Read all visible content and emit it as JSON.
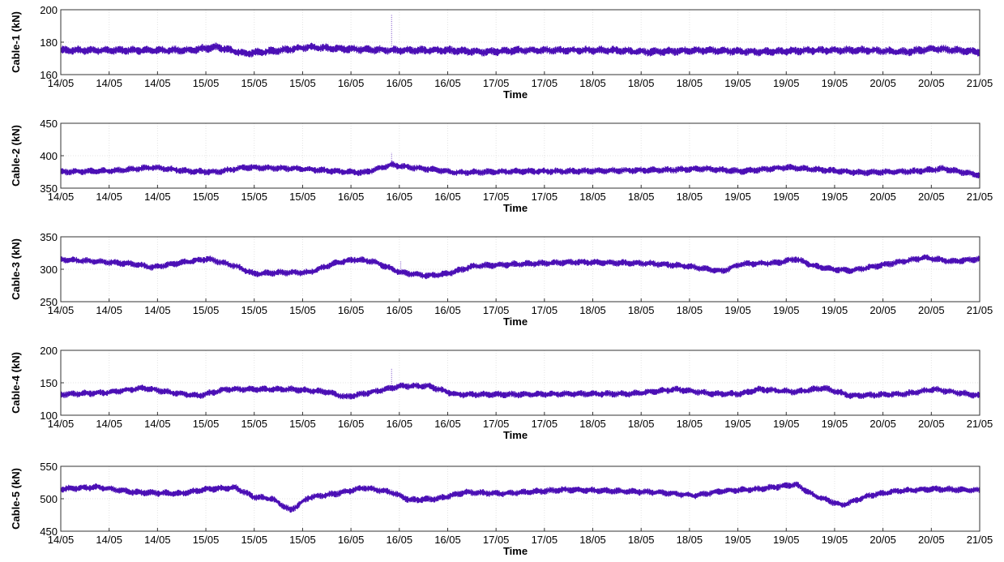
{
  "chart_data": [
    {
      "type": "line",
      "ylabel": "Cable-1 (kN)",
      "xlabel": "Time",
      "ylim": [
        160,
        200
      ],
      "yticks": [
        160,
        180,
        200
      ],
      "xtick_labels": [
        "14/05",
        "14/05",
        "14/05",
        "15/05",
        "15/05",
        "15/05",
        "16/05",
        "16/05",
        "16/05",
        "17/05",
        "17/05",
        "18/05",
        "18/05",
        "18/05",
        "19/05",
        "19/05",
        "19/05",
        "20/05",
        "20/05",
        "21/05"
      ],
      "grid": true,
      "color": "#4b0fb5",
      "baseline": [
        [
          0,
          175
        ],
        [
          0.05,
          175
        ],
        [
          0.1,
          175
        ],
        [
          0.14,
          175
        ],
        [
          0.17,
          177
        ],
        [
          0.2,
          173
        ],
        [
          0.24,
          175
        ],
        [
          0.27,
          177
        ],
        [
          0.3,
          176
        ],
        [
          0.36,
          175
        ],
        [
          0.42,
          175
        ],
        [
          0.46,
          174
        ],
        [
          0.5,
          175
        ],
        [
          0.56,
          175
        ],
        [
          0.6,
          175
        ],
        [
          0.64,
          174
        ],
        [
          0.7,
          175
        ],
        [
          0.76,
          174
        ],
        [
          0.82,
          175
        ],
        [
          0.88,
          175
        ],
        [
          0.92,
          174
        ],
        [
          0.95,
          176
        ],
        [
          1,
          174
        ]
      ],
      "spikes": [
        {
          "t": 0.36,
          "value": 197
        }
      ],
      "band": 2.2
    },
    {
      "type": "line",
      "ylabel": "Cable-2 (kN)",
      "xlabel": "Time",
      "ylim": [
        350,
        450
      ],
      "yticks": [
        350,
        400,
        450
      ],
      "xtick_labels": [
        "14/05",
        "14/05",
        "14/05",
        "15/05",
        "15/05",
        "15/05",
        "16/05",
        "16/05",
        "16/05",
        "17/05",
        "17/05",
        "18/05",
        "18/05",
        "18/05",
        "19/05",
        "19/05",
        "19/05",
        "20/05",
        "20/05",
        "21/05"
      ],
      "grid": true,
      "color": "#4b0fb5",
      "baseline": [
        [
          0,
          375
        ],
        [
          0.06,
          377
        ],
        [
          0.1,
          382
        ],
        [
          0.14,
          376
        ],
        [
          0.17,
          375
        ],
        [
          0.2,
          382
        ],
        [
          0.26,
          380
        ],
        [
          0.3,
          376
        ],
        [
          0.33,
          374
        ],
        [
          0.36,
          386
        ],
        [
          0.38,
          382
        ],
        [
          0.41,
          378
        ],
        [
          0.43,
          374
        ],
        [
          0.5,
          376
        ],
        [
          0.55,
          376
        ],
        [
          0.6,
          377
        ],
        [
          0.66,
          378
        ],
        [
          0.7,
          380
        ],
        [
          0.74,
          376
        ],
        [
          0.79,
          382
        ],
        [
          0.83,
          378
        ],
        [
          0.87,
          374
        ],
        [
          0.93,
          376
        ],
        [
          0.96,
          380
        ],
        [
          1,
          370
        ]
      ],
      "spikes": [
        {
          "t": 0.36,
          "value": 405
        }
      ],
      "band": 4.5
    },
    {
      "type": "line",
      "ylabel": "Cable-3 (kN)",
      "xlabel": "Time",
      "ylim": [
        250,
        350
      ],
      "yticks": [
        250,
        300,
        350
      ],
      "xtick_labels": [
        "14/05",
        "14/05",
        "14/05",
        "15/05",
        "15/05",
        "15/05",
        "16/05",
        "16/05",
        "16/05",
        "17/05",
        "17/05",
        "18/05",
        "18/05",
        "18/05",
        "19/05",
        "19/05",
        "19/05",
        "20/05",
        "20/05",
        "21/05"
      ],
      "grid": true,
      "color": "#4b0fb5",
      "baseline": [
        [
          0,
          315
        ],
        [
          0.04,
          312
        ],
        [
          0.08,
          308
        ],
        [
          0.1,
          303
        ],
        [
          0.13,
          310
        ],
        [
          0.16,
          316
        ],
        [
          0.19,
          305
        ],
        [
          0.21,
          293
        ],
        [
          0.24,
          295
        ],
        [
          0.27,
          295
        ],
        [
          0.3,
          310
        ],
        [
          0.32,
          315
        ],
        [
          0.34,
          312
        ],
        [
          0.37,
          295
        ],
        [
          0.4,
          290
        ],
        [
          0.42,
          293
        ],
        [
          0.45,
          305
        ],
        [
          0.5,
          308
        ],
        [
          0.56,
          311
        ],
        [
          0.6,
          310
        ],
        [
          0.64,
          309
        ],
        [
          0.68,
          305
        ],
        [
          0.72,
          297
        ],
        [
          0.74,
          308
        ],
        [
          0.78,
          310
        ],
        [
          0.8,
          316
        ],
        [
          0.82,
          305
        ],
        [
          0.84,
          300
        ],
        [
          0.86,
          298
        ],
        [
          0.9,
          308
        ],
        [
          0.92,
          313
        ],
        [
          0.94,
          318
        ],
        [
          0.97,
          312
        ],
        [
          1,
          316
        ]
      ],
      "spikes": [
        {
          "t": 0.37,
          "value": 312
        }
      ],
      "band": 4.5
    },
    {
      "type": "line",
      "ylabel": "Cable-4 (kN)",
      "xlabel": "Time",
      "ylim": [
        100,
        200
      ],
      "yticks": [
        100,
        150,
        200
      ],
      "xtick_labels": [
        "14/05",
        "14/05",
        "14/05",
        "15/05",
        "15/05",
        "15/05",
        "16/05",
        "16/05",
        "16/05",
        "17/05",
        "17/05",
        "18/05",
        "18/05",
        "18/05",
        "19/05",
        "19/05",
        "19/05",
        "20/05",
        "20/05",
        "21/05"
      ],
      "grid": true,
      "color": "#4b0fb5",
      "baseline": [
        [
          0,
          132
        ],
        [
          0.05,
          135
        ],
        [
          0.09,
          142
        ],
        [
          0.12,
          135
        ],
        [
          0.15,
          130
        ],
        [
          0.18,
          140
        ],
        [
          0.25,
          140
        ],
        [
          0.29,
          136
        ],
        [
          0.31,
          128
        ],
        [
          0.34,
          136
        ],
        [
          0.37,
          145
        ],
        [
          0.4,
          145
        ],
        [
          0.43,
          132
        ],
        [
          0.5,
          132
        ],
        [
          0.56,
          133
        ],
        [
          0.62,
          133
        ],
        [
          0.67,
          140
        ],
        [
          0.71,
          133
        ],
        [
          0.74,
          133
        ],
        [
          0.76,
          140
        ],
        [
          0.8,
          136
        ],
        [
          0.83,
          142
        ],
        [
          0.86,
          130
        ],
        [
          0.92,
          133
        ],
        [
          0.95,
          140
        ],
        [
          1,
          130
        ]
      ],
      "spikes": [
        {
          "t": 0.36,
          "value": 172
        }
      ],
      "band": 4.5
    },
    {
      "type": "line",
      "ylabel": "Cable-5 (kN)",
      "xlabel": "Time",
      "ylim": [
        450,
        550
      ],
      "yticks": [
        450,
        500,
        550
      ],
      "xtick_labels": [
        "14/05",
        "14/05",
        "14/05",
        "15/05",
        "15/05",
        "15/05",
        "16/05",
        "16/05",
        "16/05",
        "17/05",
        "17/05",
        "18/05",
        "18/05",
        "18/05",
        "19/05",
        "19/05",
        "19/05",
        "20/05",
        "20/05",
        "21/05"
      ],
      "grid": true,
      "color": "#4b0fb5",
      "baseline": [
        [
          0,
          515
        ],
        [
          0.04,
          518
        ],
        [
          0.08,
          510
        ],
        [
          0.13,
          508
        ],
        [
          0.16,
          515
        ],
        [
          0.19,
          517
        ],
        [
          0.21,
          503
        ],
        [
          0.23,
          500
        ],
        [
          0.25,
          482
        ],
        [
          0.27,
          502
        ],
        [
          0.3,
          508
        ],
        [
          0.33,
          517
        ],
        [
          0.36,
          510
        ],
        [
          0.38,
          498
        ],
        [
          0.41,
          500
        ],
        [
          0.44,
          510
        ],
        [
          0.48,
          508
        ],
        [
          0.55,
          514
        ],
        [
          0.6,
          512
        ],
        [
          0.65,
          510
        ],
        [
          0.69,
          505
        ],
        [
          0.72,
          512
        ],
        [
          0.76,
          515
        ],
        [
          0.8,
          522
        ],
        [
          0.82,
          505
        ],
        [
          0.85,
          490
        ],
        [
          0.88,
          505
        ],
        [
          0.91,
          512
        ],
        [
          0.95,
          515
        ],
        [
          1,
          513
        ]
      ],
      "spikes": [
        {
          "t": 0.36,
          "value": 515
        }
      ],
      "band": 4.5
    }
  ]
}
